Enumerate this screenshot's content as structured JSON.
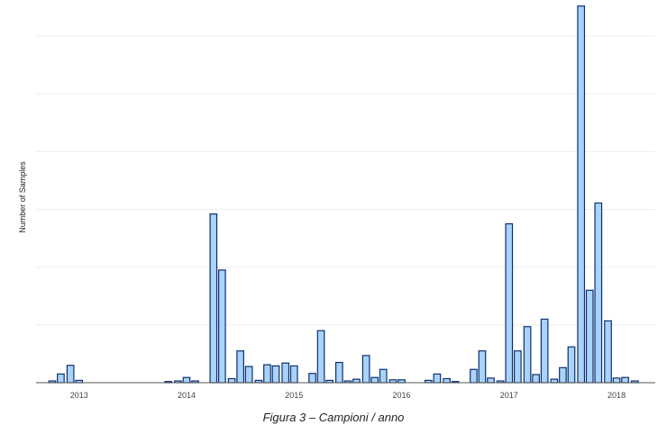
{
  "caption": "Figura 3 – Campioni / anno",
  "chart_data": {
    "type": "bar",
    "title": "",
    "xlabel": "",
    "ylabel": "Number of Samples",
    "grid": "horizontal",
    "legend": "none",
    "colors": {
      "fill": "#a9d3fb",
      "stroke": "#0d2f6b",
      "grid": "#eeeeee",
      "axis": "#555555"
    },
    "x_ticks": [
      {
        "label": "2013",
        "x": 2013.0
      },
      {
        "label": "2014",
        "x": 2014.0
      },
      {
        "label": "2015",
        "x": 2015.0
      },
      {
        "label": "2016",
        "x": 2016.0
      },
      {
        "label": "2017",
        "x": 2017.0
      },
      {
        "label": "2018",
        "x": 2018.0
      }
    ],
    "xlim": [
      2012.6,
      2018.36
    ],
    "ylim": [
      0,
      65
    ],
    "gridlines": [
      10,
      20,
      30,
      40,
      50,
      60
    ],
    "x": [
      2012.75,
      2012.83,
      2012.92,
      2013.0,
      2013.83,
      2013.92,
      2014.0,
      2014.08,
      2014.25,
      2014.33,
      2014.42,
      2014.5,
      2014.58,
      2014.67,
      2014.75,
      2014.83,
      2014.92,
      2015.0,
      2015.17,
      2015.25,
      2015.33,
      2015.42,
      2015.5,
      2015.58,
      2015.67,
      2015.75,
      2015.83,
      2015.92,
      2016.0,
      2016.25,
      2016.33,
      2016.42,
      2016.5,
      2016.67,
      2016.75,
      2016.83,
      2016.92,
      2017.0,
      2017.08,
      2017.17,
      2017.25,
      2017.33,
      2017.42,
      2017.5,
      2017.58,
      2017.67,
      2017.75,
      2017.83,
      2017.92,
      2018.0,
      2018.08,
      2018.17
    ],
    "values": [
      0.3,
      1.5,
      3,
      0.4,
      0.2,
      0.3,
      0.9,
      0.3,
      29.2,
      19.5,
      0.7,
      5.5,
      2.8,
      0.4,
      3.1,
      2.9,
      3.4,
      2.9,
      1.6,
      9,
      0.4,
      3.5,
      0.3,
      0.6,
      4.7,
      0.9,
      2.3,
      0.5,
      0.5,
      0.4,
      1.5,
      0.7,
      0.2,
      2.3,
      5.5,
      0.8,
      0.3,
      27.5,
      5.5,
      9.7,
      1.4,
      11,
      0.6,
      2.6,
      6.2,
      65.2,
      16,
      31.1,
      10.7,
      0.8,
      0.9,
      0.3
    ]
  }
}
